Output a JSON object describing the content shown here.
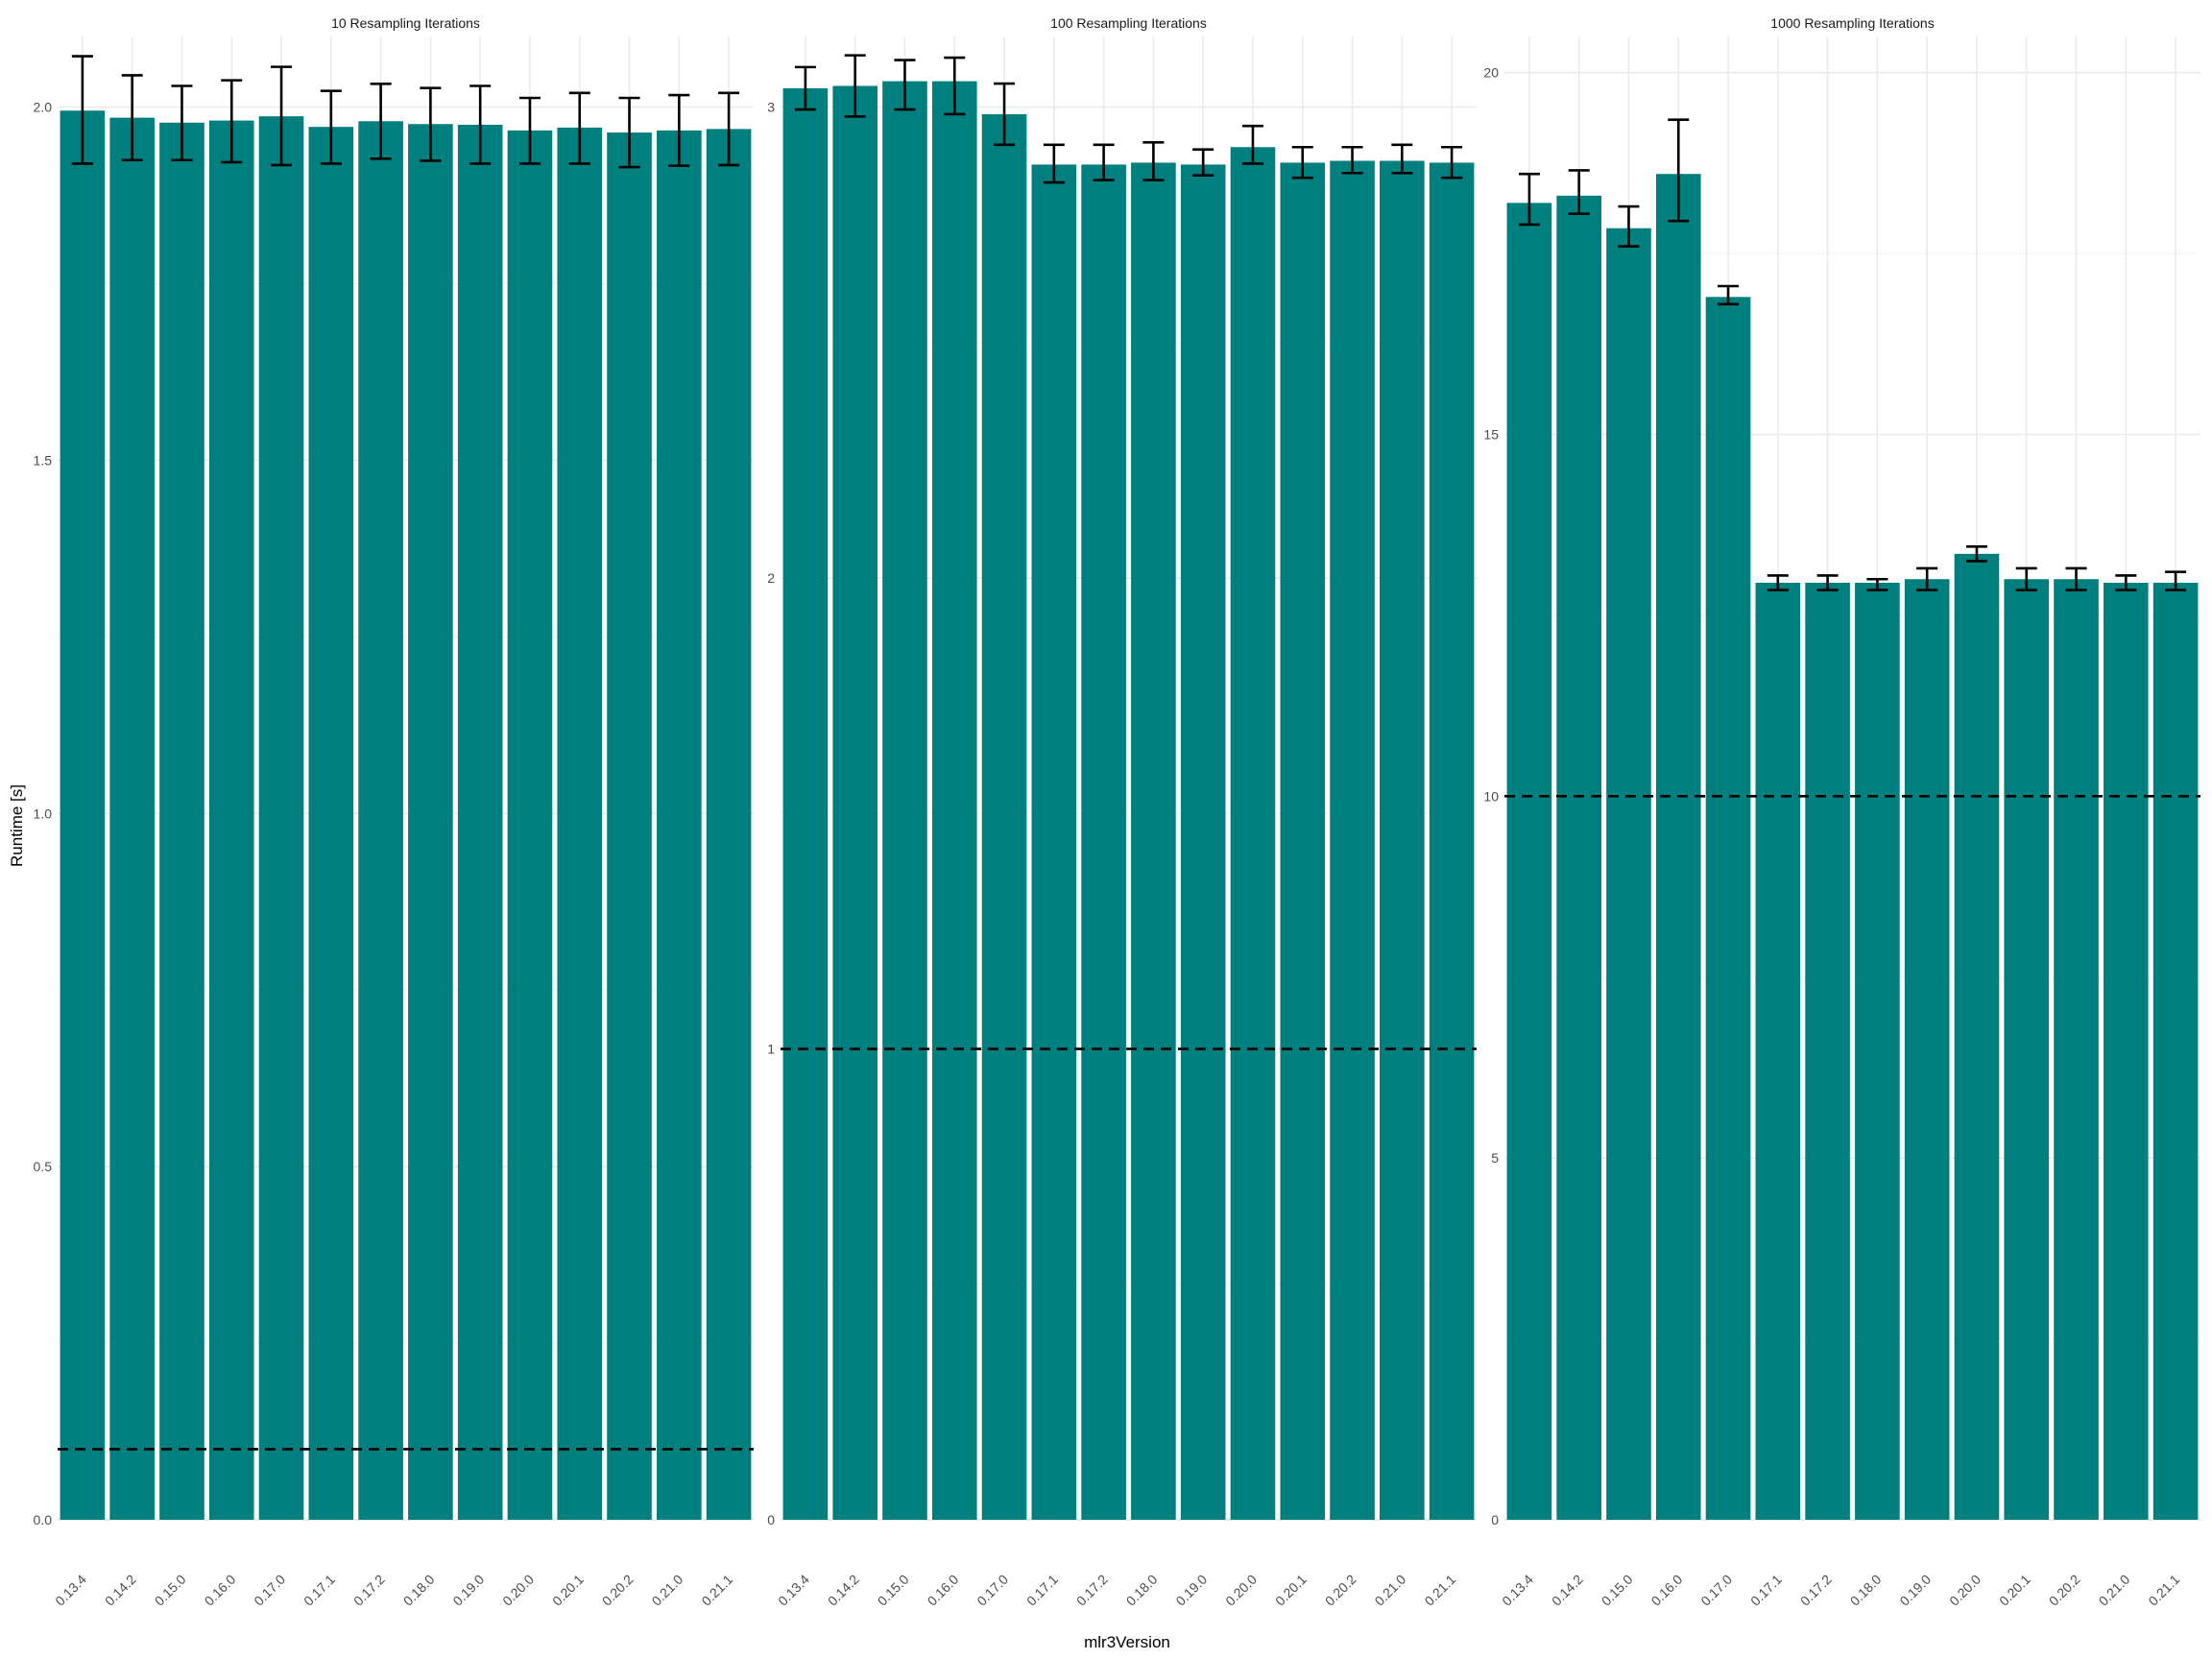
{
  "chart_data": {
    "type": "bar",
    "xlabel": "mlr3Version",
    "ylabel": "Runtime [s]",
    "bar_color": "#007f7f",
    "errorbar_color": "#000000",
    "reference_line_style": "dashed",
    "grid": true,
    "legend": "none",
    "categories": [
      "0.13.4",
      "0.14.2",
      "0.15.0",
      "0.16.0",
      "0.17.0",
      "0.17.1",
      "0.17.2",
      "0.18.0",
      "0.19.0",
      "0.20.0",
      "0.20.1",
      "0.20.2",
      "0.21.0",
      "0.21.1"
    ],
    "panels": [
      {
        "title": "10 Resampling Iterations",
        "ylim": [
          0,
          2.1
        ],
        "yticks": [
          0.0,
          0.5,
          1.0,
          1.5,
          2.0
        ],
        "ytick_labels": [
          "0.0",
          "0.5",
          "1.0",
          "1.5",
          "2.0"
        ],
        "reference_line": 0.1,
        "values": [
          1.995,
          1.985,
          1.978,
          1.981,
          1.987,
          1.972,
          1.98,
          1.976,
          1.975,
          1.967,
          1.971,
          1.964,
          1.967,
          1.969
        ],
        "error_low": [
          1.92,
          1.925,
          1.925,
          1.922,
          1.918,
          1.92,
          1.927,
          1.924,
          1.92,
          1.92,
          1.92,
          1.915,
          1.917,
          1.918
        ],
        "error_high": [
          2.072,
          2.045,
          2.03,
          2.038,
          2.057,
          2.023,
          2.033,
          2.027,
          2.03,
          2.013,
          2.02,
          2.013,
          2.017,
          2.02
        ]
      },
      {
        "title": "100 Resampling Iterations",
        "ylim": [
          0,
          3.15
        ],
        "yticks": [
          0,
          1,
          2,
          3
        ],
        "ytick_labels": [
          "0",
          "1",
          "2",
          "3"
        ],
        "reference_line": 1.0,
        "values": [
          3.04,
          3.045,
          3.055,
          3.055,
          2.985,
          2.878,
          2.878,
          2.882,
          2.878,
          2.915,
          2.882,
          2.886,
          2.886,
          2.882
        ],
        "error_low": [
          2.995,
          2.98,
          2.995,
          2.985,
          2.92,
          2.84,
          2.845,
          2.845,
          2.855,
          2.88,
          2.85,
          2.86,
          2.86,
          2.85
        ],
        "error_high": [
          3.085,
          3.11,
          3.1,
          3.105,
          3.05,
          2.92,
          2.92,
          2.925,
          2.91,
          2.96,
          2.915,
          2.915,
          2.92,
          2.915
        ]
      },
      {
        "title": "1000 Resampling Iterations",
        "ylim": [
          0,
          20.5
        ],
        "yticks": [
          0,
          5,
          10,
          15,
          20
        ],
        "ytick_labels": [
          "0",
          "5",
          "10",
          "15",
          "20"
        ],
        "reference_line": 10,
        "values": [
          18.2,
          18.3,
          17.85,
          18.6,
          16.9,
          12.95,
          12.95,
          12.95,
          13.0,
          13.35,
          13.0,
          13.0,
          12.95,
          12.95
        ],
        "error_low": [
          17.9,
          18.05,
          17.6,
          17.95,
          16.8,
          12.85,
          12.85,
          12.85,
          12.85,
          13.25,
          12.85,
          12.85,
          12.85,
          12.85
        ],
        "error_high": [
          18.6,
          18.65,
          18.15,
          19.35,
          17.05,
          13.05,
          13.05,
          13.0,
          13.15,
          13.45,
          13.15,
          13.15,
          13.05,
          13.1
        ]
      }
    ]
  }
}
